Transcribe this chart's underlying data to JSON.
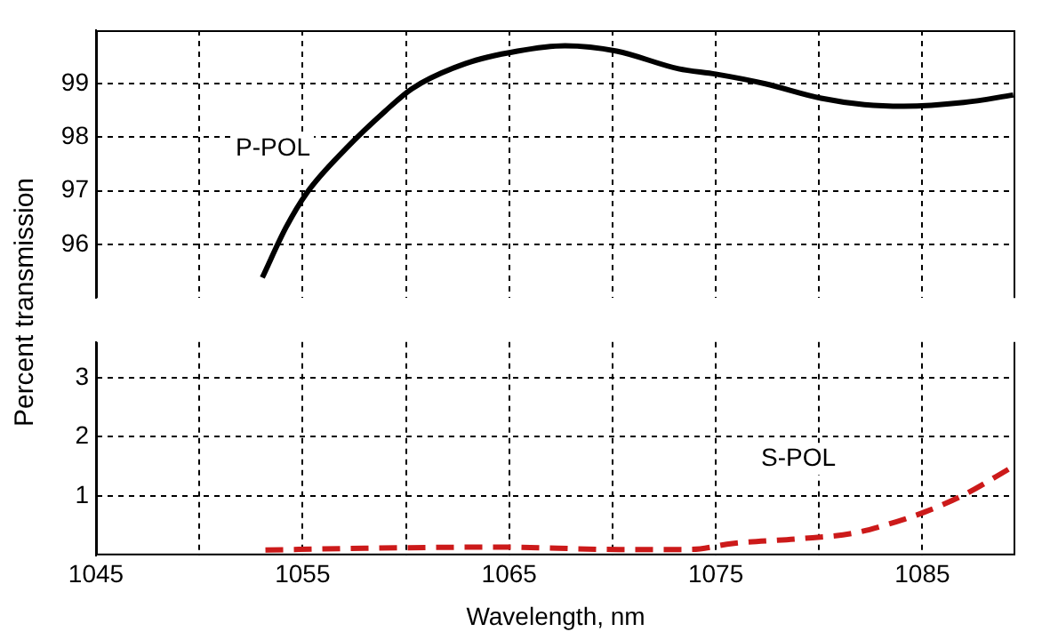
{
  "chart_data": [
    {
      "type": "line",
      "ylabel": "Percent transmission",
      "xlim": [
        1045,
        1089.5
      ],
      "xticks": [
        1045,
        {
          "value": 1050,
          "label": null
        },
        1055,
        {
          "value": 1060,
          "label": null
        },
        1065,
        {
          "value": 1070,
          "label": null
        },
        1075,
        {
          "value": 1080,
          "label": null
        },
        1085
      ],
      "ylim": [
        95,
        100
      ],
      "yticks": [
        96,
        97,
        98,
        99
      ],
      "grid": true,
      "tick_labels": "y",
      "marker": "none",
      "series": [
        {
          "name": "P-POL",
          "color": "#000000",
          "line_style": "solid",
          "x": [
            1053.05,
            1054.2,
            1055.2,
            1057.1,
            1059.0,
            1060.3,
            1062.9,
            1065.4,
            1067.7,
            1070.2,
            1073.2,
            1075.0,
            1077.4,
            1080.1,
            1082.2,
            1084.1,
            1087.0,
            1089.4
          ],
          "values": [
            95.38,
            96.32,
            96.96,
            97.79,
            98.49,
            98.91,
            99.38,
            99.61,
            99.71,
            99.61,
            99.28,
            99.18,
            99.0,
            98.73,
            98.61,
            98.58,
            98.65,
            98.79
          ]
        }
      ]
    },
    {
      "type": "line",
      "xlabel": "Wavelength, nm",
      "xlim": [
        1045,
        1089.5
      ],
      "xticks": [
        1045,
        {
          "value": 1050,
          "label": null
        },
        1055,
        {
          "value": 1060,
          "label": null
        },
        1065,
        {
          "value": 1070,
          "label": null
        },
        1075,
        {
          "value": 1080,
          "label": null
        },
        1085
      ],
      "ylim": [
        0,
        3.6
      ],
      "yticks": [
        1,
        2,
        3
      ],
      "grid": true,
      "marker": "none",
      "series": [
        {
          "name": "S-POL",
          "color": "#cc1a1a",
          "line_style": "dashed",
          "x": [
            1053.2,
            1058.0,
            1064.5,
            1070.3,
            1073.8,
            1075.8,
            1079.0,
            1081.6,
            1083.2,
            1085.1,
            1087.0,
            1089.4
          ],
          "values": [
            0.09,
            0.12,
            0.14,
            0.1,
            0.1,
            0.2,
            0.28,
            0.37,
            0.51,
            0.73,
            1.02,
            1.5
          ]
        }
      ]
    }
  ]
}
